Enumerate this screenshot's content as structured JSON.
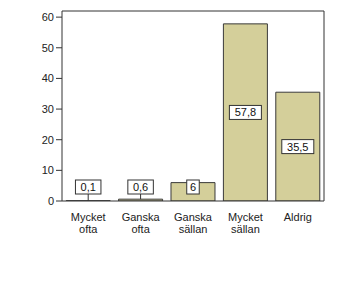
{
  "chart_data": {
    "type": "bar",
    "categories": [
      "Mycket ofta",
      "Ganska ofta",
      "Ganska sällan",
      "Mycket sällan",
      "Aldrig"
    ],
    "values": [
      0.1,
      0.6,
      6,
      57.8,
      35.5
    ],
    "value_labels": [
      "0,1",
      "0,6",
      "6",
      "57,8",
      "35,5"
    ],
    "color": "#d4cf9a",
    "ylim": [
      0,
      62
    ],
    "yticks": [
      0,
      10,
      20,
      30,
      40,
      50,
      60
    ],
    "grid": false,
    "data_labels": true
  }
}
